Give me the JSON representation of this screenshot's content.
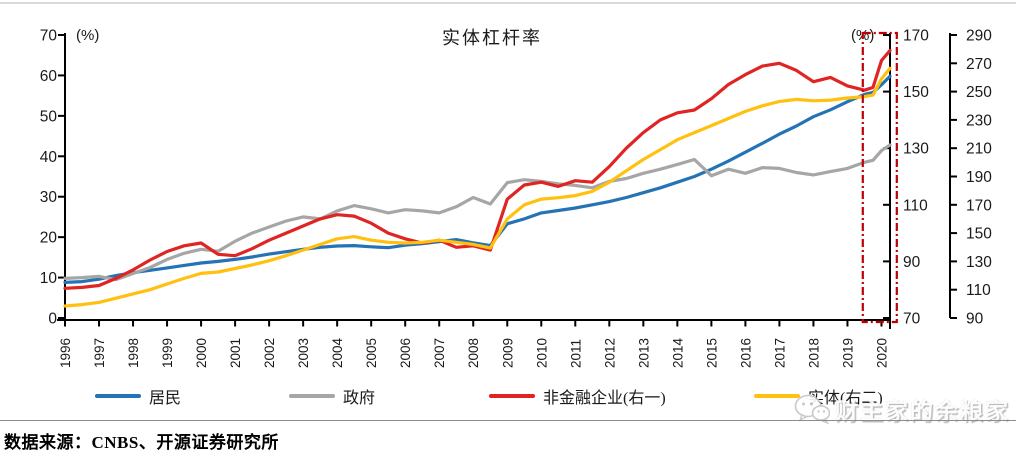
{
  "chart_data": {
    "type": "line",
    "title": "实体杠杆率",
    "x": [
      1996,
      1996.5,
      1997,
      1997.5,
      1998,
      1998.5,
      1999,
      1999.5,
      2000,
      2000.5,
      2001,
      2001.5,
      2002,
      2002.5,
      2003,
      2003.5,
      2004,
      2004.5,
      2005,
      2005.5,
      2006,
      2006.5,
      2007,
      2007.5,
      2008,
      2008.5,
      2009,
      2009.5,
      2010,
      2010.5,
      2011,
      2011.5,
      2012,
      2012.5,
      2013,
      2013.5,
      2014,
      2014.5,
      2015,
      2015.5,
      2016,
      2016.5,
      2017,
      2017.5,
      2018,
      2018.5,
      2019,
      2019.5,
      2019.75,
      2020,
      2020.25
    ],
    "x_tick_labels": [
      "1996",
      "1997",
      "1998",
      "1999",
      "2000",
      "2001",
      "2002",
      "2003",
      "2004",
      "2005",
      "2006",
      "2007",
      "2008",
      "2009",
      "2010",
      "2011",
      "2012",
      "2013",
      "2014",
      "2015",
      "2016",
      "2017",
      "2018",
      "2019",
      "2020"
    ],
    "left_axis": {
      "unit": "(%)",
      "min": 0,
      "max": 70,
      "step": 10,
      "tick_labels": [
        "70",
        "60",
        "50",
        "40",
        "30",
        "20",
        "10",
        "0"
      ]
    },
    "right_axis_1": {
      "unit": "(%)",
      "min": 70,
      "max": 170,
      "step": 20,
      "tick_labels": [
        "170",
        "150",
        "130",
        "110",
        "90",
        "70"
      ]
    },
    "right_axis_2": {
      "min": 90,
      "max": 290,
      "step": 20,
      "tick_labels": [
        "290",
        "270",
        "250",
        "230",
        "210",
        "190",
        "170",
        "150",
        "130",
        "110",
        "90"
      ]
    },
    "grid": false,
    "legend_position": "bottom",
    "series": [
      {
        "name": "居民",
        "axis": "left",
        "color": "#2473B5",
        "values": [
          8.8,
          9.0,
          9.6,
          10.5,
          11.2,
          11.8,
          12.4,
          13.0,
          13.6,
          14.0,
          14.5,
          15.1,
          15.8,
          16.4,
          17.0,
          17.5,
          17.8,
          17.9,
          17.6,
          17.4,
          18.0,
          18.4,
          18.9,
          19.4,
          18.6,
          17.9,
          23.3,
          24.5,
          26.0,
          26.6,
          27.2,
          28.0,
          28.8,
          29.8,
          31.0,
          32.2,
          33.6,
          35.0,
          36.8,
          38.8,
          41.0,
          43.2,
          45.5,
          47.5,
          49.8,
          51.5,
          53.5,
          55.3,
          55.8,
          57.7,
          59.8
        ]
      },
      {
        "name": "政府",
        "axis": "left",
        "color": "#A6A6A6",
        "values": [
          9.8,
          10.0,
          10.3,
          9.5,
          11.0,
          12.5,
          14.5,
          16.0,
          17.0,
          16.5,
          19.0,
          21.0,
          22.5,
          24.0,
          25.0,
          24.5,
          26.5,
          27.8,
          27.0,
          26.0,
          26.8,
          26.5,
          26.0,
          27.5,
          29.8,
          28.2,
          33.5,
          34.2,
          33.8,
          33.2,
          32.8,
          32.2,
          33.8,
          34.5,
          35.8,
          36.8,
          38.0,
          39.2,
          35.2,
          36.8,
          35.8,
          37.2,
          37.0,
          36.0,
          35.4,
          36.2,
          37.0,
          38.5,
          39.0,
          41.4,
          42.8
        ]
      },
      {
        "name": "非金融企业(右一)",
        "axis": "right1",
        "color": "#E02423",
        "values": [
          80.5,
          80.8,
          81.5,
          84.0,
          87.0,
          90.5,
          93.5,
          95.5,
          96.5,
          92.5,
          92.0,
          94.5,
          97.5,
          100.0,
          102.5,
          105.0,
          106.5,
          106.0,
          103.5,
          100.0,
          98.0,
          96.5,
          97.5,
          95.0,
          95.5,
          94.0,
          112.0,
          117.0,
          118.0,
          116.5,
          118.5,
          118.0,
          123.5,
          130.0,
          135.5,
          140.0,
          142.5,
          143.5,
          147.5,
          152.5,
          156.0,
          159.0,
          160.0,
          157.5,
          153.5,
          155.0,
          152.0,
          150.5,
          151.5,
          161.0,
          164.5
        ]
      },
      {
        "name": "实体(右二)",
        "axis": "right2",
        "color": "#FFC010",
        "values": [
          98.5,
          99.5,
          101.0,
          104.0,
          107.0,
          110.0,
          114.0,
          118.0,
          121.5,
          122.5,
          125.0,
          127.5,
          130.5,
          134.0,
          138.0,
          142.0,
          146.0,
          147.5,
          145.0,
          143.5,
          143.0,
          143.5,
          145.0,
          143.5,
          142.0,
          139.5,
          160.0,
          170.0,
          174.0,
          175.0,
          176.5,
          179.5,
          186.0,
          194.0,
          202.0,
          209.0,
          216.0,
          221.0,
          226.0,
          231.0,
          236.0,
          240.0,
          243.0,
          244.5,
          243.5,
          244.0,
          245.5,
          246.5,
          247.5,
          259.0,
          266.5
        ]
      }
    ],
    "highlight_box": {
      "x_start": 2019.45,
      "x_end": 2020.45,
      "color": "#C00000"
    }
  },
  "footer": {
    "source_label": "数据来源：",
    "source_text": "CNBS、开源证券研究所"
  },
  "watermark": {
    "icon": "wechat-icon",
    "text": "财主家的余粮家"
  }
}
